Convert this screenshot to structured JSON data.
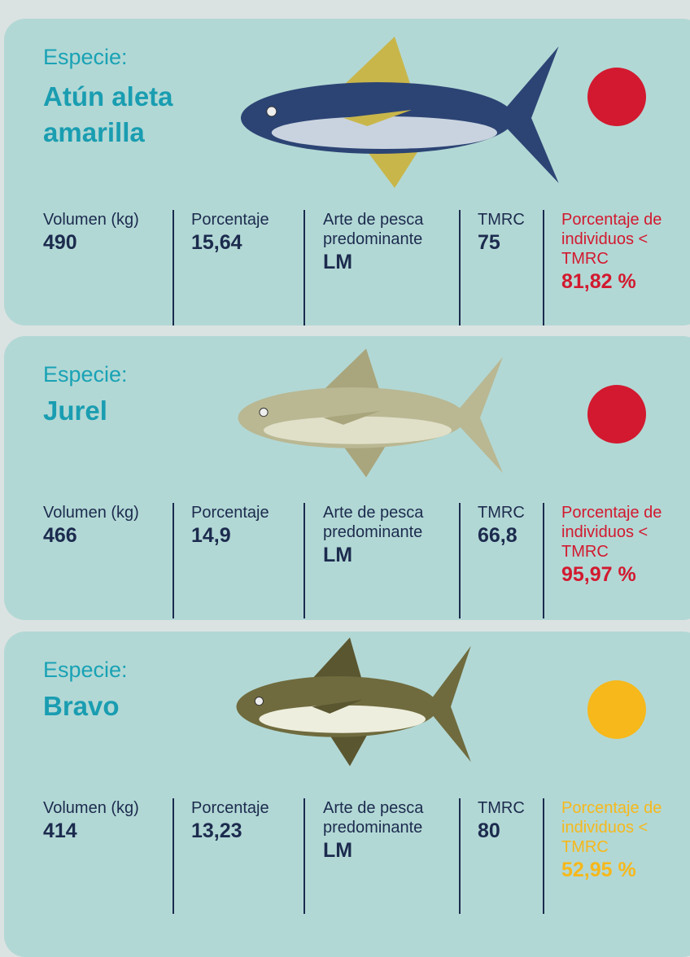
{
  "species": [
    {
      "label": "Especie:",
      "name": "Atún aleta amarilla",
      "color": "#d2192f",
      "columns": [
        {
          "label": "Volumen (kg)",
          "value": "490"
        },
        {
          "label": "Porcentaje",
          "value": "15,64"
        },
        {
          "label": "Arte de pesca predominante",
          "value": "LM"
        },
        {
          "label": "TMRC",
          "value": "75"
        },
        {
          "label": "Porcentaje de individuos < TMRC",
          "value": "81,82 %"
        }
      ]
    },
    {
      "label": "Especie:",
      "name": "Jurel",
      "color": "#d2192f",
      "columns": [
        {
          "label": "Volumen (kg)",
          "value": "466"
        },
        {
          "label": "Porcentaje",
          "value": "14,9"
        },
        {
          "label": "Arte de pesca predominante",
          "value": "LM"
        },
        {
          "label": "TMRC",
          "value": "66,8"
        },
        {
          "label": "Porcentaje de individuos < TMRC",
          "value": "95,97 %"
        }
      ]
    },
    {
      "label": "Especie:",
      "name": "Bravo",
      "color": "#f6b81b",
      "columns": [
        {
          "label": "Volumen (kg)",
          "value": "414"
        },
        {
          "label": "Porcentaje",
          "value": "13,23"
        },
        {
          "label": "Arte de pesca predominante",
          "value": "LM"
        },
        {
          "label": "TMRC",
          "value": "80"
        },
        {
          "label": "Porcentaje de individuos < TMRC",
          "value": "52,95 %"
        }
      ]
    }
  ]
}
